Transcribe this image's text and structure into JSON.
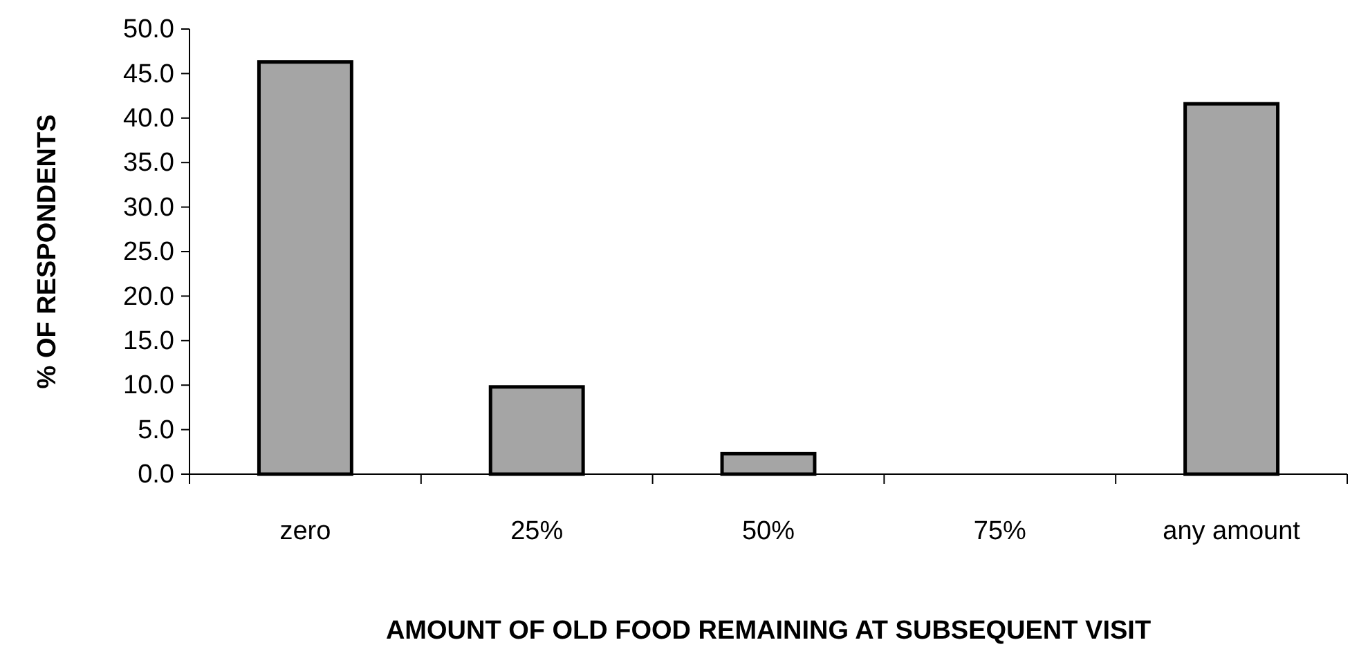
{
  "chart_data": {
    "type": "bar",
    "xlabel": "AMOUNT OF OLD FOOD REMAINING AT SUBSEQUENT VISIT",
    "ylabel": "% OF RESPONDENTS",
    "categories": [
      "zero",
      "25%",
      "50%",
      "75%",
      "any amount"
    ],
    "values": [
      46.3,
      9.8,
      2.3,
      0,
      41.6
    ],
    "color": "#a5a5a5",
    "ylim": [
      0,
      50
    ],
    "yticks": [
      {
        "value": 0,
        "label": "0.0"
      },
      {
        "value": 5,
        "label": "5.0"
      },
      {
        "value": 10,
        "label": "10.0"
      },
      {
        "value": 15,
        "label": "15.0"
      },
      {
        "value": 20,
        "label": "20.0"
      },
      {
        "value": 25,
        "label": "25.0"
      },
      {
        "value": 30,
        "label": "30.0"
      },
      {
        "value": 35,
        "label": "35.0"
      },
      {
        "value": 40,
        "label": "40.0"
      },
      {
        "value": 45,
        "label": "45.0"
      },
      {
        "value": 50,
        "label": "50.0"
      }
    ],
    "grid": false
  }
}
